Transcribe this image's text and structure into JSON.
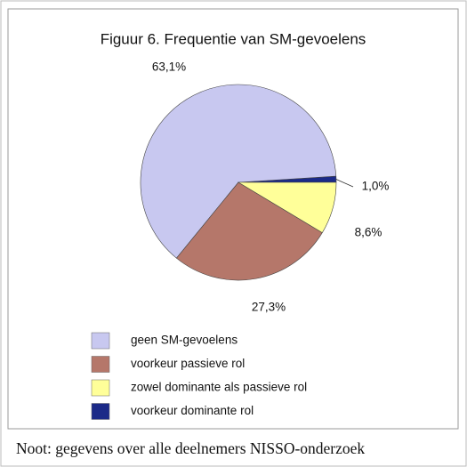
{
  "chart_data": {
    "type": "pie",
    "title": "Figuur 6. Frequentie van SM-gevoelens",
    "categories": [
      "geen SM-gevoelens",
      "voorkeur passieve rol",
      "zowel dominante als passieve rol",
      "voorkeur dominante rol"
    ],
    "values": [
      63.1,
      27.3,
      8.6,
      1.0
    ],
    "value_labels": [
      "63,1%",
      "27,3%",
      "8,6%",
      "1,0%"
    ],
    "colors": [
      "#c8c8f0",
      "#b5776a",
      "#ffff99",
      "#1b2a88"
    ],
    "note": "Noot: gegevens over alle deelnemers NISSO-onderzoek"
  }
}
